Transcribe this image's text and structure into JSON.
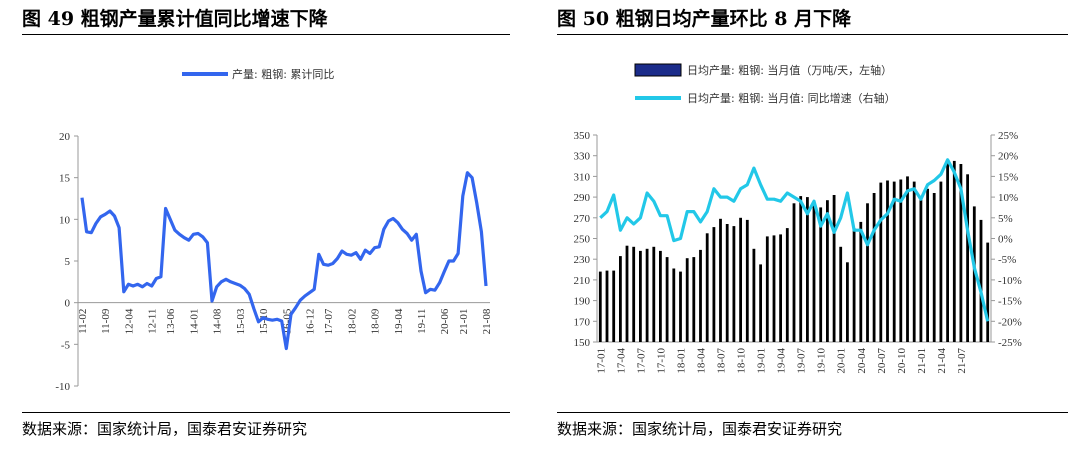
{
  "left": {
    "title": "图 49  粗钢产量累计值同比增速下降",
    "source": "数据来源：国家统计局，国泰君安证券研究",
    "chart_data": {
      "type": "line",
      "series": [
        {
          "name": "产量: 粗钢: 累计同比",
          "color": "#3366ee",
          "values": [
            12.6,
            8.5,
            8.4,
            9.5,
            10.3,
            10.6,
            11.0,
            10.4,
            9.0,
            1.3,
            2.2,
            2.0,
            2.2,
            1.9,
            2.3,
            2.0,
            2.9,
            3.1,
            11.3,
            10.0,
            8.7,
            8.2,
            7.8,
            7.5,
            8.2,
            8.3,
            7.9,
            7.2,
            0.2,
            1.9,
            2.5,
            2.8,
            2.5,
            2.3,
            2.1,
            1.7,
            1.0,
            -0.7,
            -2.3,
            -1.8,
            -2.0,
            -2.1,
            -2.0,
            -2.2,
            -5.5,
            -1.4,
            -0.6,
            0.3,
            0.8,
            1.2,
            1.6,
            5.8,
            4.6,
            4.5,
            4.7,
            5.3,
            6.2,
            5.8,
            5.7,
            6.0,
            5.2,
            6.3,
            5.9,
            6.6,
            6.7,
            8.8,
            9.8,
            10.1,
            9.6,
            8.8,
            8.3,
            7.5,
            8.2,
            3.8,
            1.2,
            1.6,
            1.5,
            2.4,
            3.7,
            5.0,
            5.0,
            5.9,
            12.8,
            15.6,
            15.0,
            12.0,
            8.5,
            2.0
          ]
        }
      ],
      "x_tick_labels": [
        "11-02",
        "11-09",
        "12-04",
        "12-11",
        "13-06",
        "14-01",
        "14-08",
        "15-03",
        "15-10",
        "16-05",
        "16-12",
        "17-07",
        "18-02",
        "18-09",
        "19-04",
        "19-11",
        "20-06",
        "21-01",
        "21-08"
      ],
      "y_ticks": [
        20,
        15,
        10,
        5,
        0,
        -5,
        -10
      ],
      "ylim": [
        -10,
        20
      ]
    }
  },
  "right": {
    "title": "图 50  粗钢日均产量环比 8 月下降",
    "source": "数据来源：国家统计局，国泰君安证券研究",
    "chart_data": {
      "type": "bar",
      "series": [
        {
          "name": "日均产量: 粗钢: 当月值（万吨/天，左轴）",
          "color": "#000000",
          "axis": "left",
          "values": [
            218,
            219,
            219,
            233,
            243,
            242,
            238,
            240,
            242,
            238,
            232,
            221,
            218,
            231,
            232,
            239,
            255,
            261,
            269,
            264,
            262,
            270,
            268,
            240,
            225,
            252,
            253,
            254,
            260,
            284,
            291,
            290,
            286,
            280,
            287,
            292,
            242,
            227,
            260,
            266,
            284,
            294,
            304,
            306,
            305,
            307,
            310,
            305,
            290,
            298,
            294,
            305,
            326,
            325,
            322,
            312,
            281,
            268,
            246
          ]
        },
        {
          "name": "日均产量: 粗钢: 当月值: 同比增速（右轴）",
          "color": "#22c8e8",
          "axis": "right",
          "values": [
            5.0,
            6.5,
            10.5,
            2.0,
            5.0,
            3.5,
            5.0,
            11.0,
            9.0,
            5.5,
            5.5,
            -0.5,
            0.0,
            6.5,
            6.5,
            4.0,
            6.5,
            12.0,
            10.0,
            10.0,
            9.0,
            12.0,
            13.0,
            17.0,
            13.0,
            9.5,
            9.5,
            9.0,
            11.0,
            10.0,
            9.0,
            6.0,
            9.0,
            3.0,
            6.0,
            1.5,
            5.0,
            11.0,
            2.0,
            2.0,
            -1.5,
            2.0,
            4.5,
            6.0,
            9.5,
            9.0,
            11.5,
            12.0,
            9.5,
            13.0,
            14.0,
            15.5,
            19.0,
            16.0,
            12.0,
            2.0,
            -7.0,
            -13.0,
            -20.0
          ]
        }
      ],
      "x_tick_labels": [
        "17-01",
        "17-04",
        "17-07",
        "17-10",
        "18-01",
        "18-04",
        "18-07",
        "18-10",
        "19-01",
        "19-04",
        "19-07",
        "19-10",
        "20-01",
        "20-04",
        "20-07",
        "20-10",
        "21-01",
        "21-04",
        "21-07"
      ],
      "y_left_ticks": [
        350,
        330,
        310,
        290,
        270,
        250,
        230,
        210,
        190,
        170,
        150
      ],
      "y_right_ticks": [
        "25%",
        "20%",
        "15%",
        "10%",
        "5%",
        "0%",
        "-5%",
        "-10%",
        "-15%",
        "-20%",
        "-25%"
      ],
      "ylim_left": [
        150,
        350
      ],
      "ylim_right": [
        -25,
        25
      ]
    }
  }
}
